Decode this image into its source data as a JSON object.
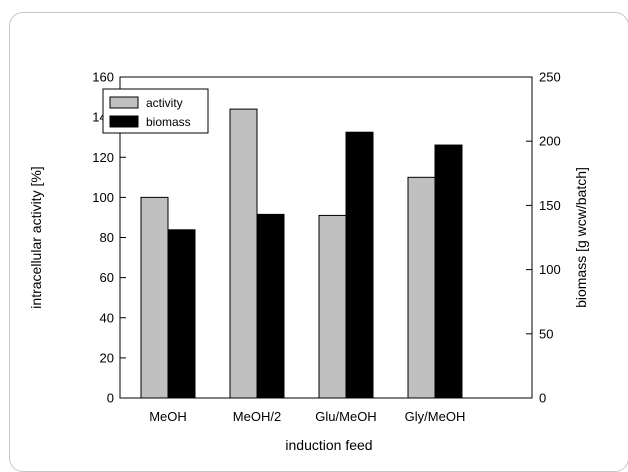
{
  "chart_data": {
    "type": "bar",
    "title": "",
    "xlabel": "induction feed",
    "ylabel": "intracellular activity [%]",
    "y2label": "biomass [g wcw/batch]",
    "categories": [
      "MeOH",
      "MeOH/2",
      "Glu/MeOH",
      "Gly/MeOH"
    ],
    "ylim": [
      0,
      160
    ],
    "yticks": [
      "0",
      "20",
      "40",
      "60",
      "80",
      "100",
      "120",
      "140",
      "160"
    ],
    "y2lim": [
      0,
      250
    ],
    "y2ticks": [
      "0",
      "50",
      "100",
      "150",
      "200",
      "250"
    ],
    "grid": false,
    "legend_position": "top-left",
    "series": [
      {
        "name": "activity",
        "axis": "left",
        "color": "#c0c0c0",
        "values": [
          100,
          144,
          91,
          110
        ]
      },
      {
        "name": "biomass",
        "axis": "right",
        "color": "#000000",
        "values": [
          131,
          143,
          207,
          197
        ]
      }
    ]
  }
}
